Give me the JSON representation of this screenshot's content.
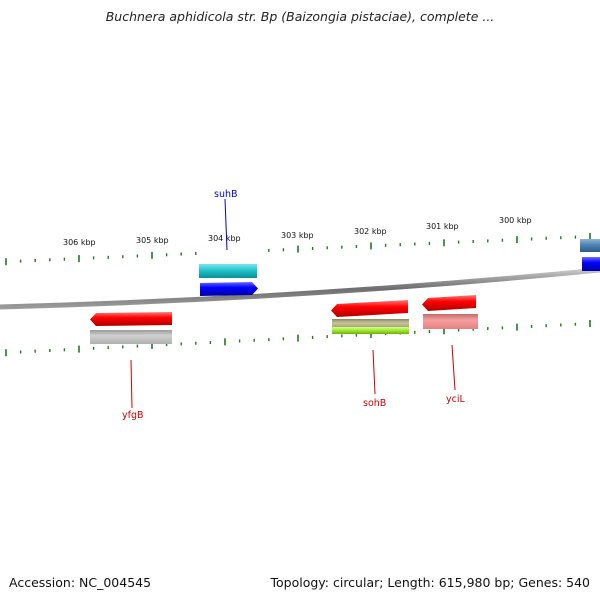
{
  "title": "Buchnera aphidicola str. Bp (Baizongia pistaciae), complete ...",
  "footer": {
    "accession": "Accession: NC_004545",
    "summary": "Topology: circular; Length: 615,980 bp; Genes: 540"
  },
  "scale_labels": [
    "306 kbp",
    "305 kbp",
    "304 kbp",
    "303 kbp",
    "302 kbp",
    "301 kbp",
    "300 kbp"
  ],
  "genes": [
    {
      "name": "suhB",
      "color": "#0000cc"
    },
    {
      "name": "yfgB",
      "color": "#cc0000"
    },
    {
      "name": "sohB",
      "color": "#cc0000"
    },
    {
      "name": "yciL",
      "color": "#cc0000"
    }
  ],
  "colors": {
    "backbone": "#8a8a8a",
    "tick": "#1e7a1e",
    "forward_gene": "#0000ee",
    "reverse_gene": "#ee0000",
    "cyan_feature": "#22c4cc",
    "gray_feature": "#b8b8b8",
    "olive_feature": "#b4b07a",
    "lime_feature": "#a6e83a",
    "pink_feature": "#f08c8c",
    "steel_feature": "#4a7fb0"
  }
}
